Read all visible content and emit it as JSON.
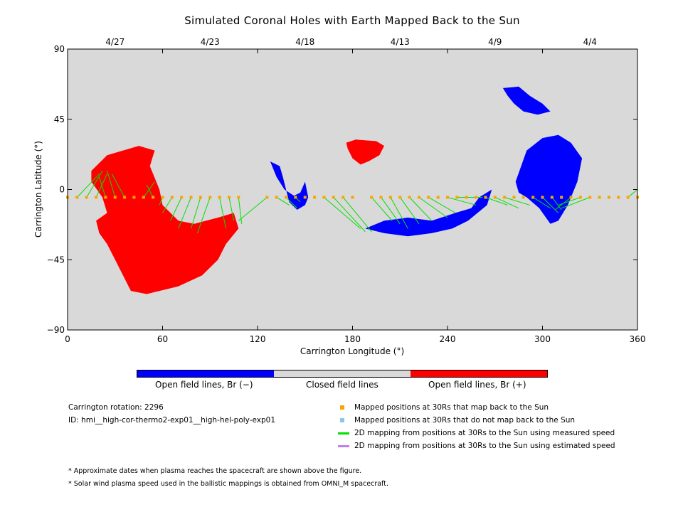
{
  "title": "Simulated Coronal Holes with Earth Mapped Back to the Sun",
  "chart_data": {
    "type": "scatter",
    "title": "Simulated Coronal Holes with Earth Mapped Back to the Sun",
    "xlabel": "Carrington Longitude (°)",
    "ylabel": "Carrington Latitude (°)",
    "xlim": [
      0,
      360
    ],
    "ylim": [
      -90,
      90
    ],
    "x_ticks": [
      0,
      60,
      120,
      180,
      240,
      300,
      360
    ],
    "y_ticks": [
      90,
      45,
      0,
      -45,
      -90
    ],
    "top_axis_dates": [
      {
        "label": "4/27",
        "lon": 30
      },
      {
        "label": "4/23",
        "lon": 90
      },
      {
        "label": "4/18",
        "lon": 150
      },
      {
        "label": "4/13",
        "lon": 210
      },
      {
        "label": "4/9",
        "lon": 270
      },
      {
        "label": "4/4",
        "lon": 330
      }
    ],
    "background_color": "#d9d9d9",
    "coronal_holes": [
      {
        "polarity": "positive",
        "color": "#ff0000",
        "name": "large-positive-hole",
        "outline": [
          [
            15,
            12
          ],
          [
            25,
            22
          ],
          [
            45,
            28
          ],
          [
            55,
            25
          ],
          [
            52,
            15
          ],
          [
            58,
            0
          ],
          [
            60,
            -10
          ],
          [
            70,
            -20
          ],
          [
            80,
            -22
          ],
          [
            95,
            -18
          ],
          [
            105,
            -15
          ],
          [
            108,
            -25
          ],
          [
            100,
            -35
          ],
          [
            95,
            -45
          ],
          [
            85,
            -55
          ],
          [
            70,
            -62
          ],
          [
            50,
            -67
          ],
          [
            40,
            -65
          ],
          [
            35,
            -55
          ],
          [
            30,
            -45
          ],
          [
            25,
            -35
          ],
          [
            20,
            -28
          ],
          [
            18,
            -20
          ],
          [
            25,
            -15
          ],
          [
            22,
            -5
          ],
          [
            15,
            5
          ]
        ]
      },
      {
        "polarity": "positive",
        "color": "#ff0000",
        "name": "small-positive-hole",
        "outline": [
          [
            176,
            30
          ],
          [
            182,
            32
          ],
          [
            195,
            31
          ],
          [
            200,
            28
          ],
          [
            197,
            22
          ],
          [
            190,
            18
          ],
          [
            185,
            16
          ],
          [
            180,
            20
          ],
          [
            177,
            26
          ]
        ]
      },
      {
        "polarity": "negative",
        "color": "#0000ff",
        "name": "north-negative-hole",
        "outline": [
          [
            275,
            65
          ],
          [
            285,
            66
          ],
          [
            292,
            60
          ],
          [
            300,
            55
          ],
          [
            305,
            50
          ],
          [
            297,
            48
          ],
          [
            288,
            50
          ],
          [
            282,
            55
          ],
          [
            278,
            60
          ]
        ]
      },
      {
        "polarity": "negative",
        "color": "#0000ff",
        "name": "central-negative-hole",
        "outline": [
          [
            283,
            5
          ],
          [
            290,
            25
          ],
          [
            300,
            33
          ],
          [
            310,
            35
          ],
          [
            318,
            30
          ],
          [
            325,
            20
          ],
          [
            322,
            5
          ],
          [
            316,
            -10
          ],
          [
            310,
            -20
          ],
          [
            305,
            -22
          ],
          [
            298,
            -12
          ],
          [
            290,
            -5
          ],
          [
            285,
            -2
          ]
        ]
      },
      {
        "polarity": "negative",
        "color": "#0000ff",
        "name": "south-negative-hole",
        "outline": [
          [
            188,
            -25
          ],
          [
            200,
            -20
          ],
          [
            215,
            -18
          ],
          [
            230,
            -20
          ],
          [
            245,
            -15
          ],
          [
            255,
            -12
          ],
          [
            260,
            -5
          ],
          [
            268,
            0
          ],
          [
            265,
            -10
          ],
          [
            253,
            -20
          ],
          [
            243,
            -25
          ],
          [
            230,
            -28
          ],
          [
            215,
            -30
          ],
          [
            200,
            -28
          ]
        ]
      },
      {
        "polarity": "negative",
        "color": "#0000ff",
        "name": "small-negative-hole",
        "outline": [
          [
            128,
            18
          ],
          [
            134,
            15
          ],
          [
            136,
            8
          ],
          [
            140,
            -8
          ],
          [
            145,
            -13
          ],
          [
            150,
            -10
          ],
          [
            152,
            -5
          ],
          [
            150,
            5
          ],
          [
            147,
            -2
          ],
          [
            143,
            -4
          ],
          [
            137,
            0
          ],
          [
            132,
            8
          ]
        ]
      }
    ],
    "mapped_positions_30Rs": {
      "color": "#f5a700",
      "latitude": -5,
      "lon": [
        0,
        6,
        12,
        18,
        24,
        30,
        36,
        42,
        48,
        54,
        60,
        66,
        72,
        78,
        84,
        90,
        96,
        102,
        108,
        126,
        132,
        138,
        144,
        150,
        156,
        162,
        168,
        174,
        180,
        192,
        198,
        204,
        210,
        216,
        222,
        228,
        234,
        240,
        246,
        252,
        258,
        264,
        270,
        276,
        282,
        288,
        294,
        300,
        306,
        312,
        318,
        324,
        330,
        336,
        342,
        348,
        354,
        360
      ]
    },
    "mapping_lines_measured": {
      "color": "#00e000",
      "segments": [
        [
          [
            6,
            -5
          ],
          [
            20,
            10
          ]
        ],
        [
          [
            12,
            -5
          ],
          [
            22,
            12
          ]
        ],
        [
          [
            18,
            -5
          ],
          [
            25,
            10
          ]
        ],
        [
          [
            24,
            -5
          ],
          [
            20,
            8
          ]
        ],
        [
          [
            30,
            -5
          ],
          [
            25,
            12
          ]
        ],
        [
          [
            36,
            -5
          ],
          [
            28,
            10
          ]
        ],
        [
          [
            48,
            -5
          ],
          [
            55,
            5
          ]
        ],
        [
          [
            54,
            -5
          ],
          [
            50,
            3
          ]
        ],
        [
          [
            60,
            -5
          ],
          [
            58,
            -10
          ]
        ],
        [
          [
            66,
            -5
          ],
          [
            60,
            -15
          ]
        ],
        [
          [
            72,
            -5
          ],
          [
            65,
            -20
          ]
        ],
        [
          [
            78,
            -5
          ],
          [
            70,
            -25
          ]
        ],
        [
          [
            84,
            -5
          ],
          [
            78,
            -25
          ]
        ],
        [
          [
            90,
            -5
          ],
          [
            82,
            -28
          ]
        ],
        [
          [
            96,
            -5
          ],
          [
            100,
            -25
          ]
        ],
        [
          [
            102,
            -5
          ],
          [
            105,
            -20
          ]
        ],
        [
          [
            108,
            -5
          ],
          [
            110,
            -22
          ]
        ],
        [
          [
            126,
            -5
          ],
          [
            108,
            -20
          ]
        ],
        [
          [
            132,
            -5
          ],
          [
            140,
            -10
          ]
        ],
        [
          [
            138,
            -5
          ],
          [
            145,
            -12
          ]
        ],
        [
          [
            144,
            -5
          ],
          [
            147,
            -8
          ]
        ],
        [
          [
            162,
            -5
          ],
          [
            185,
            -25
          ]
        ],
        [
          [
            168,
            -5
          ],
          [
            188,
            -27
          ]
        ],
        [
          [
            174,
            -5
          ],
          [
            192,
            -27
          ]
        ],
        [
          [
            192,
            -5
          ],
          [
            205,
            -20
          ]
        ],
        [
          [
            198,
            -5
          ],
          [
            210,
            -22
          ]
        ],
        [
          [
            204,
            -5
          ],
          [
            215,
            -25
          ]
        ],
        [
          [
            210,
            -5
          ],
          [
            222,
            -22
          ]
        ],
        [
          [
            216,
            -5
          ],
          [
            230,
            -20
          ]
        ],
        [
          [
            222,
            -5
          ],
          [
            240,
            -18
          ]
        ],
        [
          [
            228,
            -5
          ],
          [
            245,
            -15
          ]
        ],
        [
          [
            240,
            -5
          ],
          [
            258,
            -10
          ]
        ],
        [
          [
            246,
            -5
          ],
          [
            262,
            -5
          ]
        ],
        [
          [
            264,
            -5
          ],
          [
            278,
            -10
          ]
        ],
        [
          [
            270,
            -5
          ],
          [
            285,
            -12
          ]
        ],
        [
          [
            276,
            -5
          ],
          [
            292,
            -10
          ]
        ],
        [
          [
            294,
            -5
          ],
          [
            305,
            -12
          ]
        ],
        [
          [
            300,
            -5
          ],
          [
            310,
            -15
          ]
        ],
        [
          [
            306,
            -5
          ],
          [
            312,
            -13
          ]
        ],
        [
          [
            318,
            -5
          ],
          [
            308,
            -13
          ]
        ],
        [
          [
            324,
            -5
          ],
          [
            310,
            -10
          ]
        ],
        [
          [
            330,
            -5
          ],
          [
            312,
            -12
          ]
        ],
        [
          [
            354,
            -5
          ],
          [
            360,
            0
          ]
        ]
      ]
    }
  },
  "colorbar": {
    "segments": [
      {
        "color": "#0000ff",
        "label": "Open field lines, Br (−)"
      },
      {
        "color": "#d9d9d9",
        "label": "Closed field lines"
      },
      {
        "color": "#ff0000",
        "label": "Open field lines, Br (+)"
      }
    ]
  },
  "info": {
    "rotation": "Carrington rotation: 2296",
    "id": "ID: hmi__high-cor-thermo2-exp01__high-hel-poly-exp01"
  },
  "legend": [
    {
      "color": "#f5a700",
      "kind": "square",
      "label": "Mapped positions at 30Rs that map back to the Sun"
    },
    {
      "color": "#88c8f0",
      "kind": "square",
      "label": "Mapped positions at 30Rs that do not map back to the Sun"
    },
    {
      "color": "#00e000",
      "kind": "line",
      "label": "2D mapping from positions at 30Rs to the Sun using measured speed"
    },
    {
      "color": "#c080f0",
      "kind": "line",
      "label": "2D mapping from positions at 30Rs to the Sun using estimated speed"
    }
  ],
  "notes": [
    "* Approximate dates when plasma reaches the spacecraft are shown above the figure.",
    "* Solar wind plasma speed used in the ballistic mappings is obtained from OMNI_M spacecraft."
  ]
}
